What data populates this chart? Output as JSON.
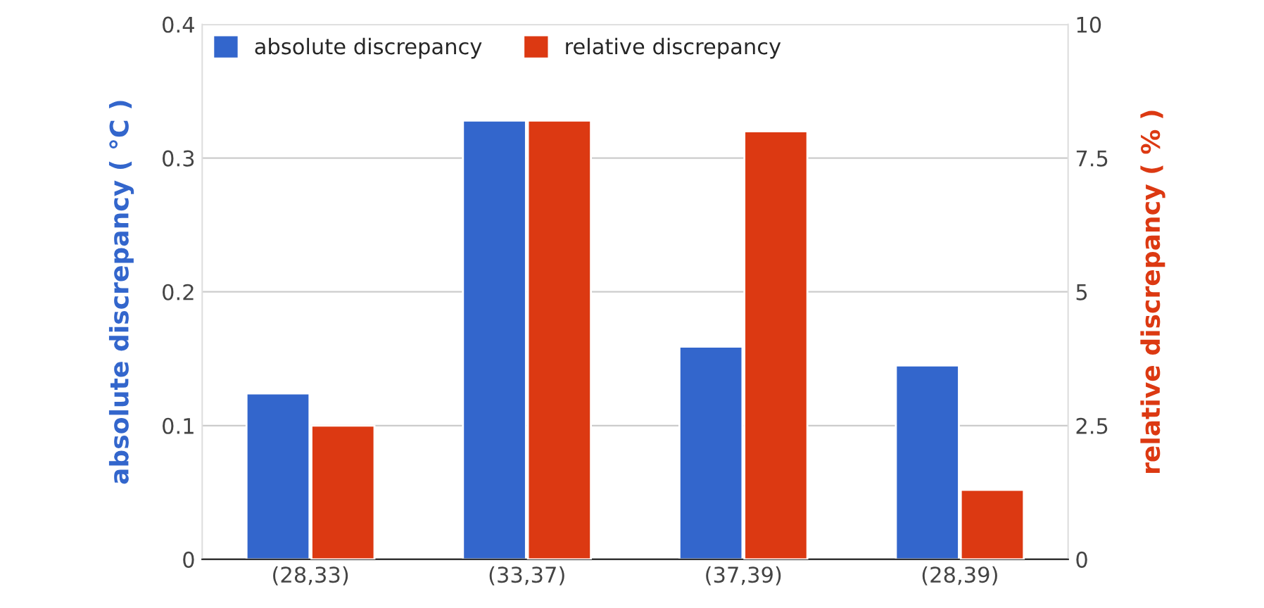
{
  "chart_data": {
    "type": "bar",
    "categories": [
      "(28,33)",
      "(33,37)",
      "(37,39)",
      "(28,39)"
    ],
    "series": [
      {
        "name": "absolute discrepancy",
        "color": "#3366cc",
        "values": [
          0.124,
          0.328,
          0.159,
          0.145
        ]
      },
      {
        "name": "relative discrepancy",
        "color": "#dc3912",
        "values": [
          2.5,
          8.2,
          8.0,
          1.3
        ],
        "axis": "y2"
      }
    ],
    "ylabel": "absolute discrepancy ( °C )",
    "y2label": "relative discrepancy ( % )",
    "ylim": [
      0,
      0.4
    ],
    "yticks": [
      0,
      0.1,
      0.2,
      0.3,
      0.4
    ],
    "y2lim": [
      0,
      10
    ],
    "y2ticks": [
      0,
      2.5,
      5,
      7.5,
      10
    ],
    "grid": "y",
    "legend": "top left"
  }
}
